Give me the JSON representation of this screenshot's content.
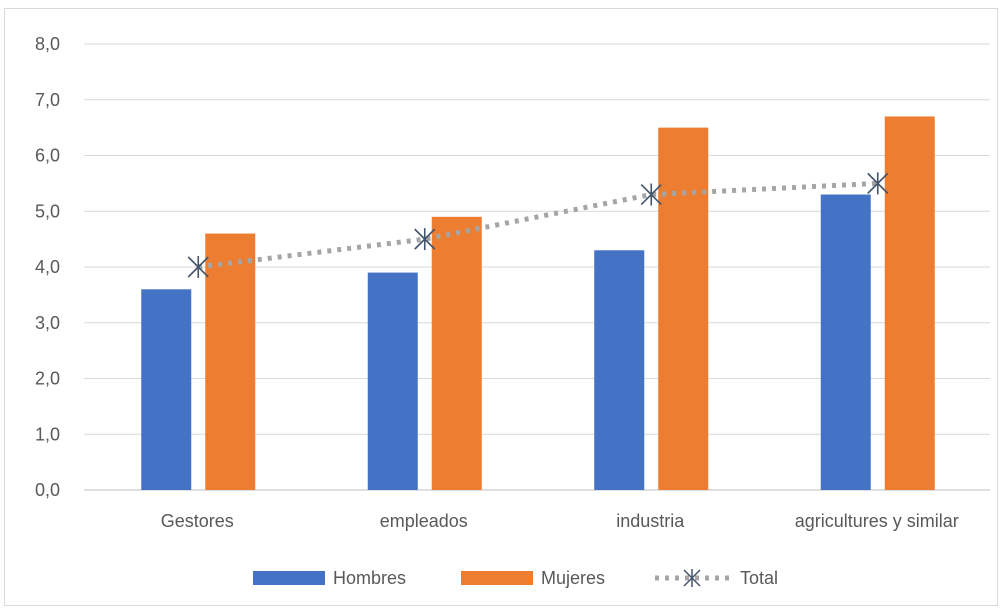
{
  "chart_data": {
    "type": "bar",
    "title": "",
    "xlabel": "",
    "ylabel": "",
    "categories": [
      "Gestores",
      "empleados",
      "industria",
      "agricultures y similar"
    ],
    "ylim": [
      0,
      8
    ],
    "ytick_step": 1,
    "ytick_labels": [
      "0,0",
      "1,0",
      "2,0",
      "3,0",
      "4,0",
      "5,0",
      "6,0",
      "7,0",
      "8,0"
    ],
    "grid": true,
    "legend_position": "bottom",
    "series": [
      {
        "name": "Hombres",
        "kind": "bar",
        "color": "#4472C4",
        "values": [
          3.6,
          3.9,
          4.3,
          5.3
        ]
      },
      {
        "name": "Mujeres",
        "kind": "bar",
        "color": "#ED7D31",
        "values": [
          4.6,
          4.9,
          6.5,
          6.7
        ]
      },
      {
        "name": "Total",
        "kind": "line",
        "line_style": "dotted",
        "marker": "asterisk",
        "color": "#A5A5A5",
        "marker_color": "#44546A",
        "values": [
          4.0,
          4.5,
          5.3,
          5.5
        ]
      }
    ]
  }
}
